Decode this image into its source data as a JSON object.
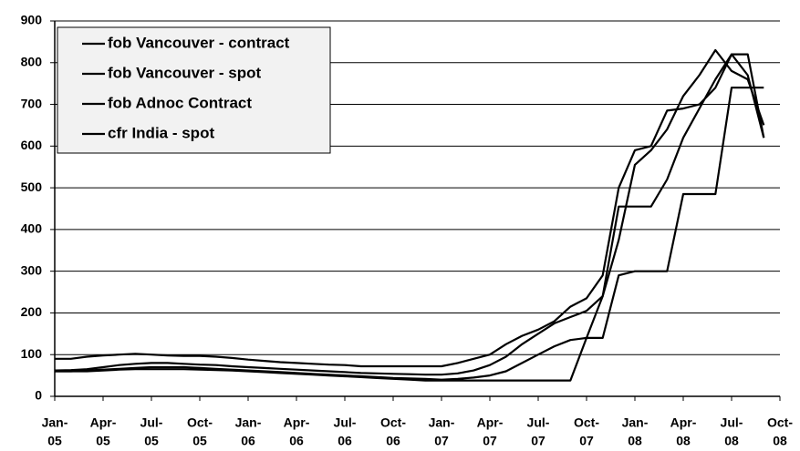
{
  "chart_data": {
    "type": "line",
    "categories": [
      "Jan-05",
      "Feb-05",
      "Mar-05",
      "Apr-05",
      "May-05",
      "Jun-05",
      "Jul-05",
      "Aug-05",
      "Sep-05",
      "Oct-05",
      "Nov-05",
      "Dec-05",
      "Jan-06",
      "Feb-06",
      "Mar-06",
      "Apr-06",
      "May-06",
      "Jun-06",
      "Jul-06",
      "Aug-06",
      "Sep-06",
      "Oct-06",
      "Nov-06",
      "Dec-06",
      "Jan-07",
      "Feb-07",
      "Mar-07",
      "Apr-07",
      "May-07",
      "Jun-07",
      "Jul-07",
      "Aug-07",
      "Sep-07",
      "Oct-07",
      "Nov-07",
      "Dec-07",
      "Jan-08",
      "Feb-08",
      "Mar-08",
      "Apr-08",
      "May-08",
      "Jun-08",
      "Jul-08",
      "Aug-08",
      "Sep-08",
      "Oct-08"
    ],
    "series": [
      {
        "name": "fob Vancouver - contract",
        "color": "#000000",
        "values": [
          90,
          90,
          95,
          98,
          100,
          102,
          100,
          98,
          97,
          97,
          95,
          92,
          88,
          85,
          82,
          80,
          78,
          76,
          75,
          72,
          72,
          72,
          72,
          72,
          72,
          80,
          90,
          100,
          125,
          145,
          160,
          180,
          215,
          235,
          290,
          500,
          590,
          600,
          685,
          690,
          700,
          740,
          820,
          820,
          620,
          null
        ]
      },
      {
        "name": "fob Vancouver - spot",
        "color": "#000000",
        "values": [
          62,
          63,
          65,
          70,
          75,
          78,
          80,
          80,
          78,
          76,
          75,
          72,
          70,
          68,
          66,
          64,
          62,
          60,
          58,
          56,
          55,
          54,
          53,
          52,
          52,
          55,
          62,
          75,
          95,
          125,
          150,
          175,
          190,
          205,
          240,
          375,
          555,
          590,
          640,
          720,
          770,
          830,
          780,
          760,
          650,
          null
        ]
      },
      {
        "name": "fob Adnoc Contract",
        "color": "#000000",
        "values": [
          60,
          60,
          62,
          64,
          66,
          68,
          70,
          70,
          70,
          68,
          66,
          64,
          62,
          60,
          58,
          56,
          54,
          52,
          50,
          48,
          46,
          44,
          43,
          42,
          40,
          42,
          45,
          50,
          60,
          80,
          100,
          120,
          135,
          140,
          240,
          455,
          455,
          455,
          520,
          620,
          690,
          760,
          820,
          770,
          620,
          null
        ]
      },
      {
        "name": "cfr India - spot",
        "color": "#000000",
        "values": [
          60,
          60,
          60,
          62,
          64,
          65,
          65,
          65,
          65,
          64,
          63,
          62,
          60,
          58,
          56,
          54,
          52,
          50,
          48,
          46,
          44,
          42,
          40,
          38,
          38,
          38,
          38,
          38,
          38,
          38,
          38,
          38,
          38,
          140,
          140,
          290,
          300,
          300,
          300,
          485,
          485,
          485,
          740,
          740,
          740,
          null
        ]
      }
    ],
    "ylim": [
      0,
      900
    ],
    "yticks": [
      0,
      100,
      200,
      300,
      400,
      500,
      600,
      700,
      800,
      900
    ],
    "grid": true,
    "xticks": [
      {
        "value": "Jan-05",
        "label": [
          "Jan-",
          "05"
        ]
      },
      {
        "value": "Apr-05",
        "label": [
          "Apr-",
          "05"
        ]
      },
      {
        "value": "Jul-05",
        "label": [
          "Jul-",
          "05"
        ]
      },
      {
        "value": "Oct-05",
        "label": [
          "Oct-",
          "05"
        ]
      },
      {
        "value": "Jan-06",
        "label": [
          "Jan-",
          "06"
        ]
      },
      {
        "value": "Apr-06",
        "label": [
          "Apr-",
          "06"
        ]
      },
      {
        "value": "Jul-06",
        "label": [
          "Jul-",
          "06"
        ]
      },
      {
        "value": "Oct-06",
        "label": [
          "Oct-",
          "06"
        ]
      },
      {
        "value": "Jan-07",
        "label": [
          "Jan-",
          "07"
        ]
      },
      {
        "value": "Apr-07",
        "label": [
          "Apr-",
          "07"
        ]
      },
      {
        "value": "Jul-07",
        "label": [
          "Jul-",
          "07"
        ]
      },
      {
        "value": "Oct-07",
        "label": [
          "Oct-",
          "07"
        ]
      },
      {
        "value": "Jan-08",
        "label": [
          "Jan-",
          "08"
        ]
      },
      {
        "value": "Apr-08",
        "label": [
          "Apr-",
          "08"
        ]
      },
      {
        "value": "Jul-08",
        "label": [
          "Jul-",
          "08"
        ]
      },
      {
        "value": "Oct-08",
        "label": [
          "Oct-",
          "08"
        ]
      }
    ],
    "legend": "top-left"
  }
}
